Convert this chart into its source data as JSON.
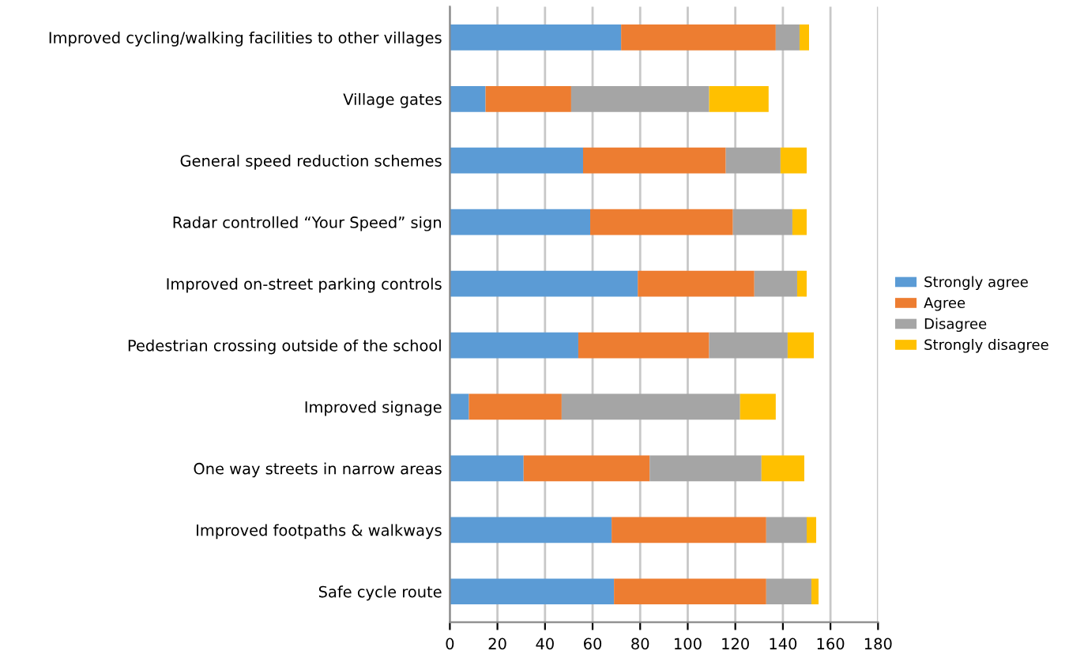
{
  "chart_data": {
    "type": "bar",
    "orientation": "horizontal",
    "stacked": true,
    "categories": [
      "Improved cycling/walking facilities to other villages",
      "Village gates",
      "General speed reduction schemes",
      "Radar controlled “Your Speed” sign",
      "Improved on-street parking controls",
      "Pedestrian crossing outside of the school",
      "Improved signage",
      "One way streets in narrow areas",
      "Improved footpaths & walkways",
      "Safe cycle route"
    ],
    "series": [
      {
        "name": "Strongly agree",
        "color": "#5b9bd5",
        "values": [
          72,
          15,
          56,
          59,
          79,
          54,
          8,
          31,
          68,
          69
        ]
      },
      {
        "name": "Agree",
        "color": "#ed7d31",
        "values": [
          65,
          36,
          60,
          60,
          49,
          55,
          39,
          53,
          65,
          64
        ]
      },
      {
        "name": "Disagree",
        "color": "#a5a5a5",
        "values": [
          10,
          58,
          23,
          25,
          18,
          33,
          75,
          47,
          17,
          19
        ]
      },
      {
        "name": "Strongly disagree",
        "color": "#ffc000",
        "values": [
          4,
          25,
          11,
          6,
          4,
          11,
          15,
          18,
          4,
          3
        ]
      }
    ],
    "xlim": [
      0,
      180
    ],
    "xticks": [
      0,
      20,
      40,
      60,
      80,
      100,
      120,
      140,
      160,
      180
    ],
    "grid": "x",
    "legend": "right"
  }
}
